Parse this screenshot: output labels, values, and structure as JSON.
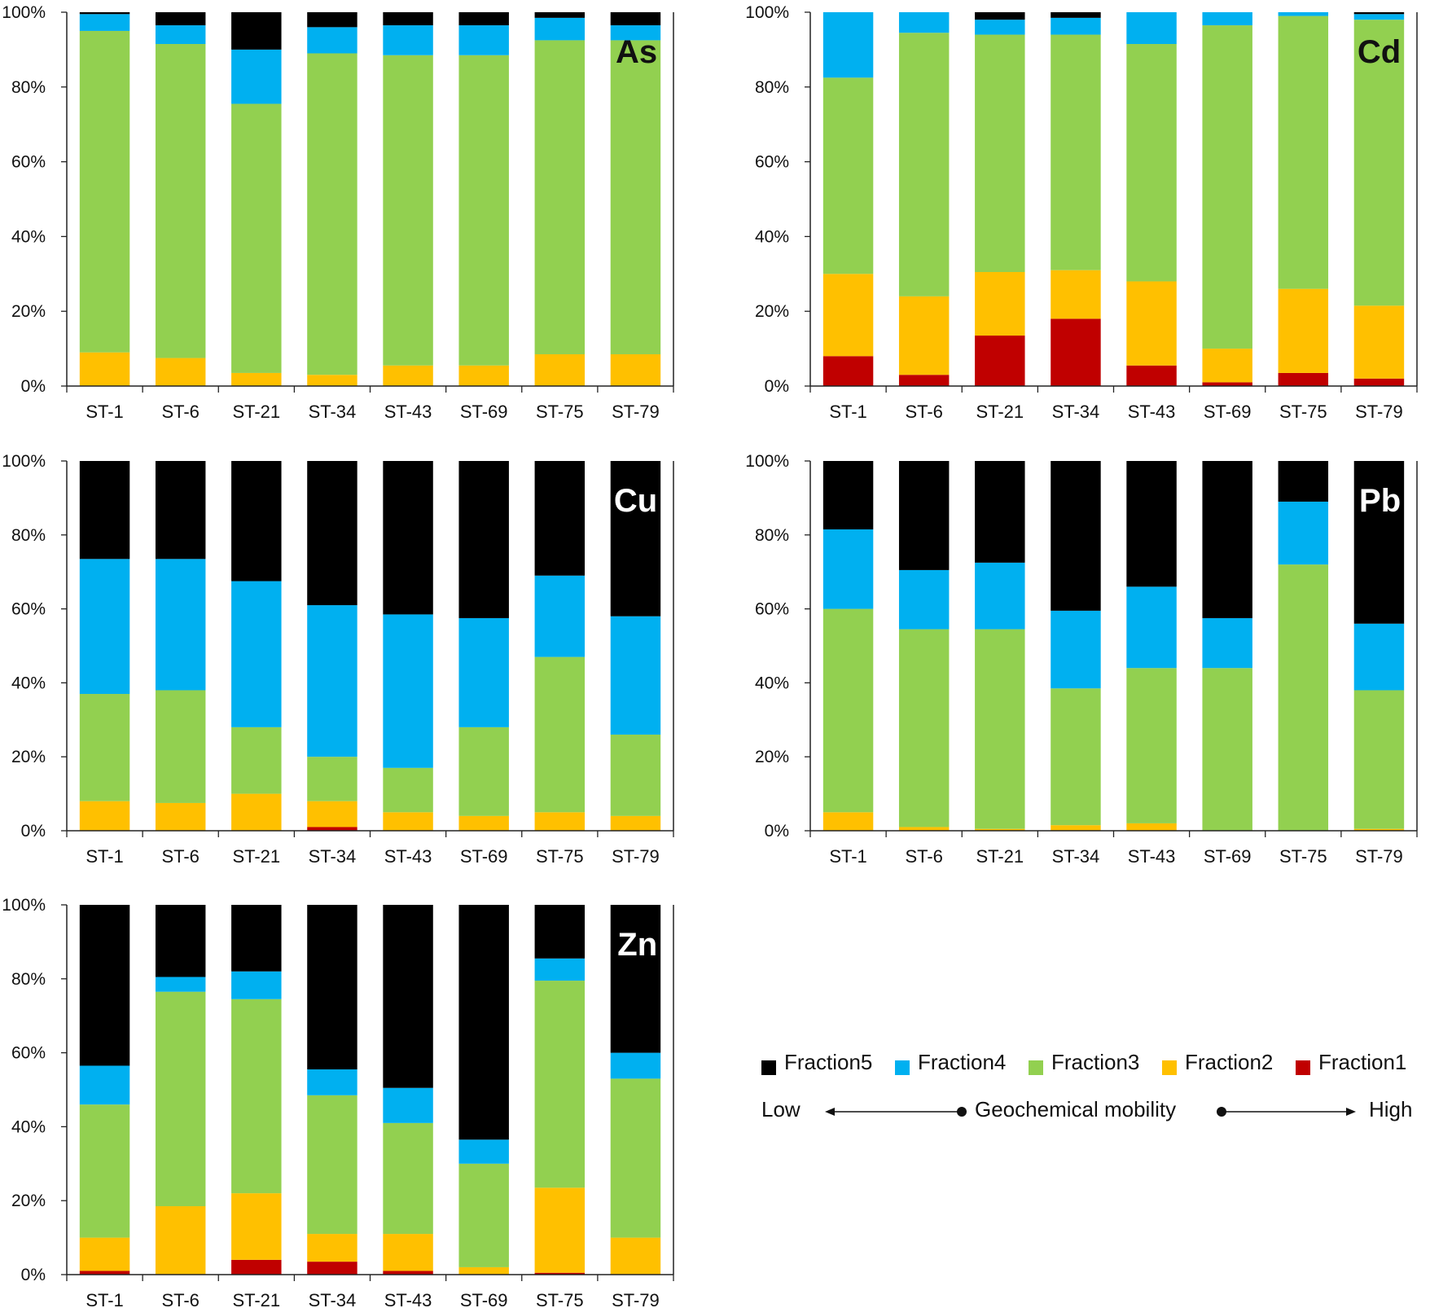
{
  "colors": {
    "Fraction5": "#000000",
    "Fraction4": "#00b0f0",
    "Fraction3": "#92d050",
    "Fraction2": "#ffc000",
    "Fraction1": "#c00000"
  },
  "legend": {
    "items": [
      "Fraction5",
      "Fraction4",
      "Fraction3",
      "Fraction2",
      "Fraction1"
    ],
    "low": "Low",
    "mobility": "Geochemical mobility",
    "high": "High"
  },
  "chart_data": [
    {
      "type": "bar",
      "stacked": true,
      "title": "As",
      "categories": [
        "ST-1",
        "ST-6",
        "ST-21",
        "ST-34",
        "ST-43",
        "ST-69",
        "ST-75",
        "ST-79"
      ],
      "ylim": [
        0,
        100
      ],
      "yticks": [
        "0%",
        "20%",
        "40%",
        "60%",
        "80%",
        "100%"
      ],
      "series": [
        {
          "name": "Fraction1",
          "values": [
            0,
            0,
            0,
            0,
            0,
            0,
            0,
            0
          ]
        },
        {
          "name": "Fraction2",
          "values": [
            9,
            7.5,
            3.5,
            3,
            5.5,
            5.5,
            8.5,
            8.5
          ]
        },
        {
          "name": "Fraction3",
          "values": [
            86,
            84,
            72,
            86,
            83,
            83,
            84,
            84
          ]
        },
        {
          "name": "Fraction4",
          "values": [
            4.5,
            5,
            14.5,
            7,
            8,
            8,
            6,
            4
          ]
        },
        {
          "name": "Fraction5",
          "values": [
            0.5,
            3.5,
            10,
            4,
            3.5,
            3.5,
            1.5,
            3.5
          ]
        }
      ]
    },
    {
      "type": "bar",
      "stacked": true,
      "title": "Cd",
      "categories": [
        "ST-1",
        "ST-6",
        "ST-21",
        "ST-34",
        "ST-43",
        "ST-69",
        "ST-75",
        "ST-79"
      ],
      "ylim": [
        0,
        100
      ],
      "yticks": [
        "0%",
        "20%",
        "40%",
        "60%",
        "80%",
        "100%"
      ],
      "series": [
        {
          "name": "Fraction1",
          "values": [
            8,
            3,
            13.5,
            18,
            5.5,
            1,
            3.5,
            2
          ]
        },
        {
          "name": "Fraction2",
          "values": [
            22,
            21,
            17,
            13,
            22.5,
            9,
            22.5,
            19.5
          ]
        },
        {
          "name": "Fraction3",
          "values": [
            52.5,
            70.5,
            63.5,
            63,
            63.5,
            86.5,
            73,
            76.5
          ]
        },
        {
          "name": "Fraction4",
          "values": [
            17.5,
            5.5,
            4,
            4.5,
            8.5,
            3.5,
            1,
            1.5
          ]
        },
        {
          "name": "Fraction5",
          "values": [
            0,
            0,
            2,
            1.5,
            0,
            0,
            0,
            0.5
          ]
        }
      ]
    },
    {
      "type": "bar",
      "stacked": true,
      "title": "Cu",
      "categories": [
        "ST-1",
        "ST-6",
        "ST-21",
        "ST-34",
        "ST-43",
        "ST-69",
        "ST-75",
        "ST-79"
      ],
      "ylim": [
        0,
        100
      ],
      "yticks": [
        "0%",
        "20%",
        "40%",
        "60%",
        "80%",
        "100%"
      ],
      "series": [
        {
          "name": "Fraction1",
          "values": [
            0,
            0,
            0,
            1,
            0,
            0,
            0,
            0
          ]
        },
        {
          "name": "Fraction2",
          "values": [
            8,
            7.5,
            10,
            7,
            5,
            4,
            5,
            4
          ]
        },
        {
          "name": "Fraction3",
          "values": [
            29,
            30.5,
            18,
            12,
            12,
            24,
            42,
            22
          ]
        },
        {
          "name": "Fraction4",
          "values": [
            36.5,
            35.5,
            39.5,
            41,
            41.5,
            29.5,
            22,
            32
          ]
        },
        {
          "name": "Fraction5",
          "values": [
            26.5,
            26.5,
            32.5,
            39,
            41.5,
            42.5,
            31,
            42
          ]
        }
      ]
    },
    {
      "type": "bar",
      "stacked": true,
      "title": "Pb",
      "categories": [
        "ST-1",
        "ST-6",
        "ST-21",
        "ST-34",
        "ST-43",
        "ST-69",
        "ST-75",
        "ST-79"
      ],
      "ylim": [
        0,
        100
      ],
      "yticks": [
        "0%",
        "20%",
        "40%",
        "60%",
        "80%",
        "100%"
      ],
      "series": [
        {
          "name": "Fraction1",
          "values": [
            0,
            0,
            0,
            0,
            0,
            0,
            0,
            0
          ]
        },
        {
          "name": "Fraction2",
          "values": [
            5,
            1,
            0.5,
            1.5,
            2,
            0,
            0,
            0.5
          ]
        },
        {
          "name": "Fraction3",
          "values": [
            55,
            53.5,
            54,
            37,
            42,
            44,
            72,
            37.5
          ]
        },
        {
          "name": "Fraction4",
          "values": [
            21.5,
            16,
            18,
            21,
            22,
            13.5,
            17,
            18
          ]
        },
        {
          "name": "Fraction5",
          "values": [
            18.5,
            29.5,
            27.5,
            40.5,
            34,
            42.5,
            11,
            44
          ]
        }
      ]
    },
    {
      "type": "bar",
      "stacked": true,
      "title": "Zn",
      "categories": [
        "ST-1",
        "ST-6",
        "ST-21",
        "ST-34",
        "ST-43",
        "ST-69",
        "ST-75",
        "ST-79"
      ],
      "ylim": [
        0,
        100
      ],
      "yticks": [
        "0%",
        "20%",
        "40%",
        "60%",
        "80%",
        "100%"
      ],
      "series": [
        {
          "name": "Fraction1",
          "values": [
            1,
            0,
            4,
            3.5,
            1,
            0,
            0.5,
            0
          ]
        },
        {
          "name": "Fraction2",
          "values": [
            9,
            18.5,
            18,
            7.5,
            10,
            2,
            23,
            10
          ]
        },
        {
          "name": "Fraction3",
          "values": [
            36,
            58,
            52.5,
            37.5,
            30,
            28,
            56,
            43
          ]
        },
        {
          "name": "Fraction4",
          "values": [
            10.5,
            4,
            7.5,
            7,
            9.5,
            6.5,
            6,
            7
          ]
        },
        {
          "name": "Fraction5",
          "values": [
            43.5,
            19.5,
            18,
            44.5,
            49.5,
            63.5,
            14.5,
            40
          ]
        }
      ]
    }
  ]
}
